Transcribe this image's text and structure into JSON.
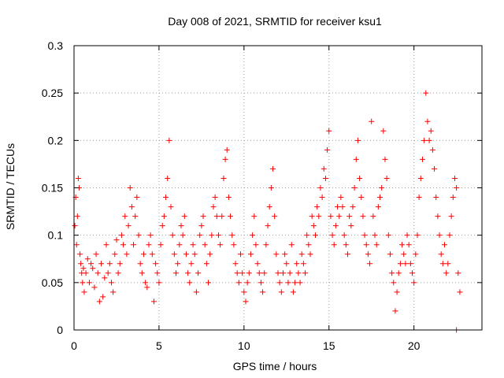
{
  "chart_data": {
    "type": "scatter",
    "title": "Day 008 of 2021, SRMTID for receiver ksu1",
    "xlabel": "GPS time / hours",
    "ylabel": "SRMTID / TECUs",
    "xlim": [
      0,
      24
    ],
    "ylim": [
      0,
      0.3
    ],
    "xticks": [
      0,
      5,
      10,
      15,
      20
    ],
    "xtick_labels": [
      "0",
      "5",
      "10",
      "15",
      "20"
    ],
    "yticks": [
      0,
      0.05,
      0.1,
      0.15,
      0.2,
      0.25,
      0.3
    ],
    "ytick_labels": [
      "0",
      "0.05",
      "0.1",
      "0.15",
      "0.2",
      "0.25",
      "0.3"
    ],
    "grid": true,
    "marker": "+",
    "marker_color": "#ff0000",
    "series": [
      {
        "name": "SRMTID",
        "x": [
          0.05,
          0.1,
          0.15,
          0.2,
          0.25,
          0.3,
          0.35,
          0.4,
          0.45,
          0.5,
          0.55,
          0.6,
          0.7,
          0.8,
          0.9,
          1.0,
          1.1,
          1.2,
          1.3,
          1.4,
          1.5,
          1.6,
          1.7,
          1.8,
          1.9,
          2.0,
          2.1,
          2.2,
          2.3,
          2.4,
          2.5,
          2.6,
          2.7,
          2.8,
          2.9,
          3.0,
          3.1,
          3.2,
          3.3,
          3.4,
          3.5,
          3.6,
          3.7,
          3.8,
          3.9,
          4.0,
          4.1,
          4.2,
          4.3,
          4.4,
          4.5,
          4.6,
          4.7,
          4.8,
          4.9,
          5.0,
          5.1,
          5.2,
          5.3,
          5.4,
          5.5,
          5.6,
          5.7,
          5.8,
          5.9,
          6.0,
          6.1,
          6.2,
          6.3,
          6.4,
          6.5,
          6.6,
          6.7,
          6.8,
          6.9,
          7.0,
          7.1,
          7.2,
          7.3,
          7.4,
          7.5,
          7.6,
          7.7,
          7.8,
          7.9,
          8.0,
          8.1,
          8.2,
          8.3,
          8.4,
          8.5,
          8.6,
          8.7,
          8.8,
          8.9,
          9.0,
          9.1,
          9.2,
          9.3,
          9.4,
          9.5,
          9.6,
          9.7,
          9.8,
          9.9,
          10.0,
          10.1,
          10.2,
          10.3,
          10.4,
          10.5,
          10.6,
          10.7,
          10.8,
          10.9,
          11.0,
          11.1,
          11.2,
          11.3,
          11.4,
          11.5,
          11.6,
          11.7,
          11.8,
          11.9,
          12.0,
          12.1,
          12.2,
          12.3,
          12.4,
          12.5,
          12.6,
          12.7,
          12.8,
          12.9,
          13.0,
          13.1,
          13.2,
          13.3,
          13.4,
          13.5,
          13.6,
          13.7,
          13.8,
          13.9,
          14.0,
          14.1,
          14.2,
          14.3,
          14.4,
          14.5,
          14.6,
          14.7,
          14.8,
          14.9,
          15.0,
          15.1,
          15.2,
          15.3,
          15.4,
          15.5,
          15.6,
          15.7,
          15.8,
          15.9,
          16.0,
          16.1,
          16.2,
          16.3,
          16.4,
          16.5,
          16.6,
          16.7,
          16.8,
          16.9,
          17.0,
          17.1,
          17.2,
          17.3,
          17.4,
          17.5,
          17.6,
          17.7,
          17.8,
          17.9,
          18.0,
          18.1,
          18.2,
          18.3,
          18.4,
          18.5,
          18.6,
          18.7,
          18.8,
          18.9,
          19.0,
          19.1,
          19.2,
          19.3,
          19.4,
          19.5,
          19.6,
          19.7,
          19.8,
          19.9,
          20.0,
          20.1,
          20.2,
          20.3,
          20.4,
          20.5,
          20.6,
          20.7,
          20.8,
          20.9,
          21.0,
          21.1,
          21.2,
          21.3,
          21.4,
          21.5,
          21.6,
          21.7,
          21.8,
          21.9,
          22.0,
          22.1,
          22.2,
          22.3,
          22.4,
          22.5,
          22.6,
          22.7,
          22.5
        ],
        "y": [
          0.11,
          0.14,
          0.09,
          0.12,
          0.16,
          0.15,
          0.08,
          0.07,
          0.06,
          0.05,
          0.065,
          0.04,
          0.06,
          0.075,
          0.05,
          0.07,
          0.065,
          0.045,
          0.08,
          0.06,
          0.03,
          0.07,
          0.035,
          0.055,
          0.09,
          0.06,
          0.07,
          0.05,
          0.04,
          0.08,
          0.095,
          0.06,
          0.07,
          0.1,
          0.09,
          0.12,
          0.08,
          0.11,
          0.15,
          0.13,
          0.09,
          0.12,
          0.14,
          0.1,
          0.07,
          0.06,
          0.08,
          0.05,
          0.045,
          0.09,
          0.1,
          0.08,
          0.03,
          0.07,
          0.06,
          0.05,
          0.09,
          0.11,
          0.12,
          0.14,
          0.16,
          0.2,
          0.13,
          0.1,
          0.08,
          0.06,
          0.07,
          0.09,
          0.11,
          0.1,
          0.12,
          0.08,
          0.06,
          0.05,
          0.07,
          0.09,
          0.08,
          0.04,
          0.06,
          0.1,
          0.11,
          0.12,
          0.09,
          0.07,
          0.05,
          0.08,
          0.1,
          0.13,
          0.14,
          0.12,
          0.1,
          0.09,
          0.12,
          0.16,
          0.18,
          0.19,
          0.14,
          0.12,
          0.1,
          0.09,
          0.07,
          0.06,
          0.05,
          0.08,
          0.06,
          0.04,
          0.03,
          0.05,
          0.06,
          0.08,
          0.1,
          0.12,
          0.09,
          0.07,
          0.06,
          0.05,
          0.04,
          0.06,
          0.09,
          0.11,
          0.13,
          0.15,
          0.17,
          0.12,
          0.08,
          0.06,
          0.05,
          0.04,
          0.06,
          0.08,
          0.07,
          0.05,
          0.06,
          0.09,
          0.04,
          0.05,
          0.07,
          0.06,
          0.05,
          0.08,
          0.07,
          0.06,
          0.1,
          0.09,
          0.08,
          0.12,
          0.11,
          0.1,
          0.13,
          0.12,
          0.15,
          0.14,
          0.17,
          0.16,
          0.19,
          0.21,
          0.12,
          0.1,
          0.09,
          0.11,
          0.13,
          0.12,
          0.14,
          0.13,
          0.1,
          0.09,
          0.08,
          0.12,
          0.11,
          0.13,
          0.15,
          0.18,
          0.2,
          0.16,
          0.14,
          0.12,
          0.1,
          0.09,
          0.08,
          0.07,
          0.22,
          0.12,
          0.1,
          0.09,
          0.13,
          0.14,
          0.15,
          0.21,
          0.18,
          0.16,
          0.1,
          0.08,
          0.06,
          0.05,
          0.02,
          0.04,
          0.06,
          0.07,
          0.09,
          0.08,
          0.07,
          0.1,
          0.09,
          0.07,
          0.06,
          0.05,
          0.08,
          0.1,
          0.14,
          0.16,
          0.18,
          0.2,
          0.25,
          0.22,
          0.2,
          0.21,
          0.19,
          0.17,
          0.14,
          0.12,
          0.1,
          0.08,
          0.07,
          0.09,
          0.06,
          0.07,
          0.1,
          0.12,
          0.14,
          0.16,
          0.15,
          0.06,
          0.04,
          0.0
        ]
      }
    ]
  }
}
